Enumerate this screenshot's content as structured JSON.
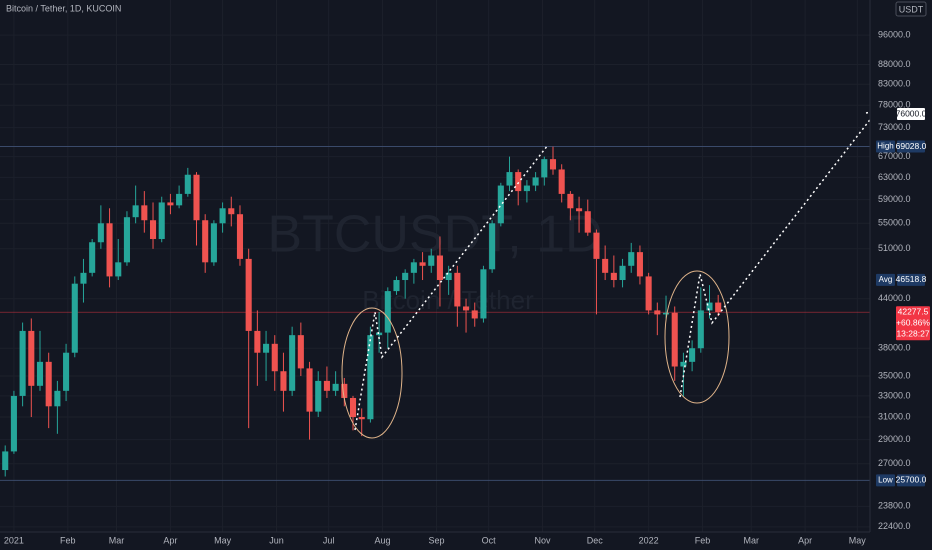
{
  "chart_data": {
    "type": "candlestick",
    "title": "Bitcoin / Tether, 1D, KUCOIN",
    "watermark": "BTCUSDT, 1D",
    "watermark_subtitle": "Bitcoin / Tether",
    "currency": "USDT",
    "up_color": "#26a69a",
    "down_color": "#ef5350",
    "log_scale": true,
    "grid": true,
    "xlim": [
      -8,
      490
    ],
    "ylim": [
      22060,
      106500
    ],
    "xticks": [
      {
        "value": 0,
        "label": "2021"
      },
      {
        "value": 31,
        "label": "Feb"
      },
      {
        "value": 59,
        "label": "Mar"
      },
      {
        "value": 90,
        "label": "Apr"
      },
      {
        "value": 120,
        "label": "May"
      },
      {
        "value": 151,
        "label": "Jun"
      },
      {
        "value": 181,
        "label": "Jul"
      },
      {
        "value": 212,
        "label": "Aug"
      },
      {
        "value": 243,
        "label": "Sep"
      },
      {
        "value": 273,
        "label": "Oct"
      },
      {
        "value": 304,
        "label": "Nov"
      },
      {
        "value": 334,
        "label": "Dec"
      },
      {
        "value": 365,
        "label": "2022"
      },
      {
        "value": 396,
        "label": "Feb"
      },
      {
        "value": 424,
        "label": "Mar"
      },
      {
        "value": 455,
        "label": "Apr"
      },
      {
        "value": 485,
        "label": "May"
      }
    ],
    "yticks": [
      {
        "value": 96000,
        "label": "96000.0"
      },
      {
        "value": 88000,
        "label": "88000.0"
      },
      {
        "value": 83000,
        "label": "83000.0"
      },
      {
        "value": 78000,
        "label": "78000.0"
      },
      {
        "value": 73000,
        "label": "73000.0"
      },
      {
        "value": 67000,
        "label": "67000.0"
      },
      {
        "value": 63000,
        "label": "63000.0"
      },
      {
        "value": 59000,
        "label": "59000.0"
      },
      {
        "value": 55000,
        "label": "55000.0"
      },
      {
        "value": 51000,
        "label": "51000.0"
      },
      {
        "value": 44000,
        "label": "44000.0"
      },
      {
        "value": 38000,
        "label": "38000.0"
      },
      {
        "value": 35000,
        "label": "35000.0"
      },
      {
        "value": 33000,
        "label": "33000.0"
      },
      {
        "value": 31000,
        "label": "31000.0"
      },
      {
        "value": 29000,
        "label": "29000.0"
      },
      {
        "value": 27000,
        "label": "27000.0"
      },
      {
        "value": 23800,
        "label": "23800.0"
      },
      {
        "value": 22400,
        "label": "22400.0"
      }
    ],
    "x": [
      -5,
      0,
      5,
      10,
      15,
      20,
      25,
      30,
      35,
      40,
      45,
      50,
      55,
      60,
      65,
      70,
      75,
      80,
      85,
      90,
      95,
      100,
      105,
      110,
      115,
      120,
      125,
      130,
      135,
      140,
      145,
      150,
      155,
      160,
      165,
      170,
      175,
      180,
      185,
      190,
      195,
      200,
      205,
      210,
      215,
      220,
      225,
      230,
      235,
      240,
      245,
      250,
      255,
      260,
      265,
      270,
      275,
      280,
      285,
      290,
      295,
      300,
      305,
      310,
      315,
      320,
      325,
      330,
      335,
      340,
      345,
      350,
      355,
      360,
      365,
      370,
      375,
      380,
      385,
      390,
      395,
      400,
      405
    ],
    "open": [
      26500,
      28000,
      33000,
      40000,
      34000,
      36500,
      32000,
      33500,
      37500,
      46000,
      47500,
      52000,
      55000,
      47000,
      49000,
      56000,
      58000,
      55500,
      52500,
      58500,
      58000,
      60000,
      63500,
      55500,
      49000,
      55000,
      57500,
      56500,
      49500,
      40000,
      37500,
      38500,
      35500,
      33500,
      39500,
      35800,
      31500,
      34500,
      33500,
      34200,
      32800,
      31000,
      30800,
      39500,
      39800,
      45000,
      46500,
      47500,
      49000,
      48500,
      50000,
      46500,
      47500,
      43000,
      42500,
      41500,
      48000,
      55000,
      61500,
      64000,
      60500,
      61500,
      63000,
      66500,
      64500,
      60000,
      57500,
      57000,
      53500,
      49500,
      47500,
      46500,
      48500,
      50500,
      47000,
      42500,
      42000,
      42200,
      36000,
      36500,
      38000,
      42500,
      43500
    ],
    "high": [
      28500,
      33500,
      41000,
      41500,
      40000,
      37500,
      34500,
      38500,
      47000,
      49500,
      52500,
      58000,
      57500,
      52500,
      57000,
      61500,
      60500,
      58500,
      59500,
      60000,
      61500,
      64800,
      64000,
      56500,
      55500,
      58500,
      59500,
      58000,
      51000,
      42500,
      40000,
      39500,
      37500,
      40500,
      41000,
      36500,
      35500,
      36000,
      35500,
      34800,
      33000,
      31800,
      40500,
      42300,
      45500,
      47000,
      48000,
      49500,
      50500,
      51000,
      52900,
      48500,
      48500,
      44000,
      43500,
      48500,
      55500,
      62000,
      67000,
      64500,
      62500,
      64000,
      67000,
      69000,
      65500,
      60500,
      59500,
      59000,
      54000,
      51500,
      50000,
      49500,
      51900,
      51500,
      47500,
      43500,
      44400,
      43000,
      37500,
      38900,
      45500,
      45800,
      44500
    ],
    "low": [
      26000,
      27800,
      32000,
      31000,
      33500,
      30000,
      29500,
      32500,
      37000,
      43500,
      47000,
      51000,
      45500,
      46500,
      48500,
      55000,
      53500,
      51000,
      52000,
      56500,
      57500,
      59500,
      51500,
      47500,
      48500,
      53500,
      54500,
      48500,
      30000,
      34000,
      34500,
      33500,
      31500,
      33000,
      35000,
      29000,
      31000,
      32800,
      33000,
      32000,
      29800,
      29300,
      30500,
      37500,
      38000,
      44500,
      44000,
      46000,
      46500,
      47500,
      43000,
      44500,
      40500,
      39800,
      40500,
      41000,
      47500,
      54500,
      60500,
      58000,
      58500,
      60500,
      61500,
      63500,
      58500,
      55500,
      53500,
      53000,
      42000,
      46500,
      45500,
      45500,
      47500,
      45900,
      42000,
      39500,
      41500,
      34500,
      32900,
      35500,
      37500,
      41500,
      41800
    ],
    "close": [
      28000,
      33000,
      40000,
      34000,
      36500,
      32000,
      33500,
      37500,
      46000,
      47500,
      52000,
      55000,
      47000,
      49000,
      56000,
      58000,
      55500,
      52500,
      58500,
      58000,
      60000,
      63500,
      55500,
      49000,
      55000,
      57500,
      56500,
      49500,
      40000,
      37500,
      38500,
      35500,
      33500,
      39500,
      35800,
      31500,
      34500,
      33500,
      34200,
      32800,
      31000,
      30800,
      39500,
      39800,
      45000,
      46500,
      47500,
      49000,
      48500,
      50000,
      46500,
      47500,
      43000,
      42500,
      41500,
      48000,
      55000,
      61500,
      64000,
      60500,
      61500,
      63000,
      66500,
      64500,
      60000,
      57500,
      57000,
      53500,
      49500,
      47500,
      46500,
      48500,
      50500,
      47000,
      42500,
      42000,
      42200,
      36000,
      36500,
      38000,
      42500,
      43500,
      42277.5
    ],
    "price_lines": [
      {
        "name": "High",
        "value": 69028,
        "value_label": "69028.0",
        "line": true
      },
      {
        "name": "Avg",
        "value": 46518.8,
        "value_label": "46518.8",
        "line": false
      },
      {
        "name": "Low",
        "value": 25700,
        "value_label": "25700.0",
        "line": true
      }
    ],
    "target": {
      "value": 76000,
      "value_label": "76000.0"
    },
    "current": {
      "value": 42277.5,
      "value_label": "42277.5",
      "change": "+60.86%",
      "countdown": "13:28:27",
      "color": "#f23645"
    }
  }
}
